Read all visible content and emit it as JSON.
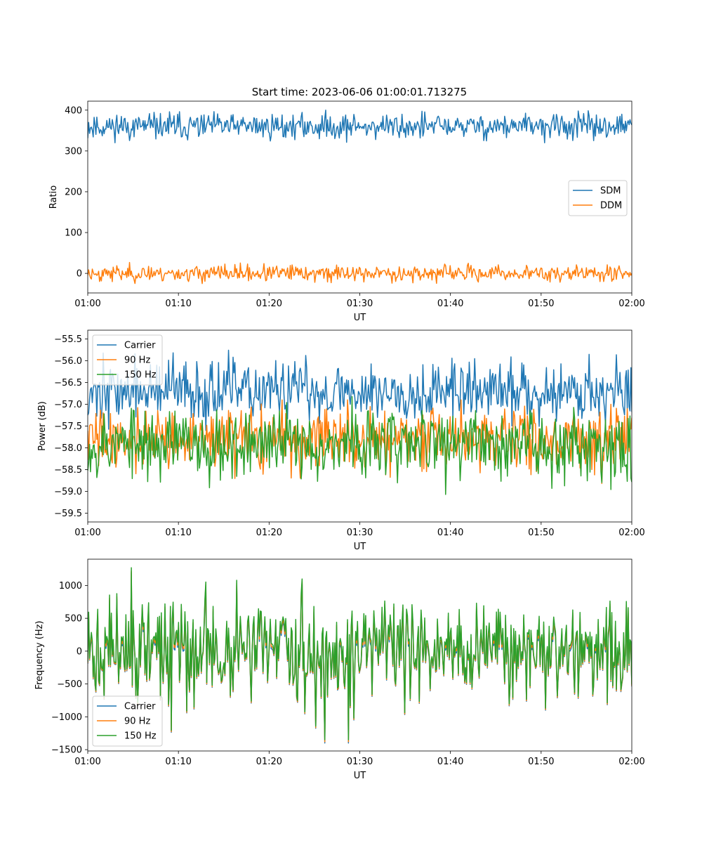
{
  "figure": {
    "title": "Start time: 2023-06-06 01:00:01.713275"
  },
  "chart_data": [
    {
      "type": "line",
      "xlabel": "UT",
      "ylabel": "Ratio",
      "xlim": [
        "01:00",
        "02:00"
      ],
      "ylim": [
        -48,
        422
      ],
      "x_ticks": [
        "01:00",
        "01:10",
        "01:20",
        "01:30",
        "01:40",
        "01:50",
        "02:00"
      ],
      "y_ticks": [
        0,
        100,
        200,
        300,
        400
      ],
      "y_tick_labels": [
        "0",
        "100",
        "200",
        "300",
        "400"
      ],
      "legend_position": "center-right",
      "series": [
        {
          "name": "SDM",
          "color": "#1f77b4",
          "mean": 360,
          "amplitude": 16,
          "min": 320,
          "max": 400,
          "seed": 11
        },
        {
          "name": "DDM",
          "color": "#ff7f0e",
          "mean": 0,
          "amplitude": 10,
          "min": -25,
          "max": 32,
          "seed": 23
        }
      ]
    },
    {
      "type": "line",
      "xlabel": "UT",
      "ylabel": "Power (dB)",
      "xlim": [
        "01:00",
        "02:00"
      ],
      "ylim": [
        -59.7,
        -55.3
      ],
      "x_ticks": [
        "01:00",
        "01:10",
        "01:20",
        "01:30",
        "01:40",
        "01:50",
        "02:00"
      ],
      "y_ticks": [
        -55.5,
        -56.0,
        -56.5,
        -57.0,
        -57.5,
        -58.0,
        -58.5,
        -59.0,
        -59.5
      ],
      "y_tick_labels": [
        "−55.5",
        "−56.0",
        "−56.5",
        "−57.0",
        "−57.5",
        "−58.0",
        "−58.5",
        "−59.0",
        "−59.5"
      ],
      "legend_position": "upper-left",
      "series": [
        {
          "name": "Carrier",
          "color": "#1f77b4",
          "mean": -56.7,
          "amplitude": 0.35,
          "min": -57.6,
          "max": -55.6,
          "seed": 37
        },
        {
          "name": "90 Hz",
          "color": "#ff7f0e",
          "mean": -57.8,
          "amplitude": 0.35,
          "min": -59.5,
          "max": -56.9,
          "seed": 41
        },
        {
          "name": "150 Hz",
          "color": "#2ca02c",
          "mean": -57.9,
          "amplitude": 0.4,
          "min": -59.2,
          "max": -56.6,
          "seed": 53
        }
      ]
    },
    {
      "type": "line",
      "xlabel": "UT",
      "ylabel": "Frequency (Hz)",
      "xlim": [
        "01:00",
        "02:00"
      ],
      "ylim": [
        -1520,
        1400
      ],
      "x_ticks": [
        "01:00",
        "01:10",
        "01:20",
        "01:30",
        "01:40",
        "01:50",
        "02:00"
      ],
      "y_ticks": [
        1000,
        500,
        0,
        -500,
        -1000,
        -1500
      ],
      "y_tick_labels": [
        "1000",
        "500",
        "0",
        "−500",
        "−1000",
        "−1500"
      ],
      "legend_position": "lower-left",
      "series": [
        {
          "name": "Carrier",
          "color": "#1f77b4",
          "offset": -30,
          "scale": 1.0,
          "min": -1400,
          "max": 1200,
          "seed": 71
        },
        {
          "name": "90 Hz",
          "color": "#ff7f0e",
          "offset": -10,
          "scale": 1.0,
          "min": -1380,
          "max": 1220,
          "seed": 71
        },
        {
          "name": "150 Hz",
          "color": "#2ca02c",
          "offset": 20,
          "scale": 1.0,
          "min": -1350,
          "max": 1270,
          "seed": 71
        }
      ]
    }
  ]
}
